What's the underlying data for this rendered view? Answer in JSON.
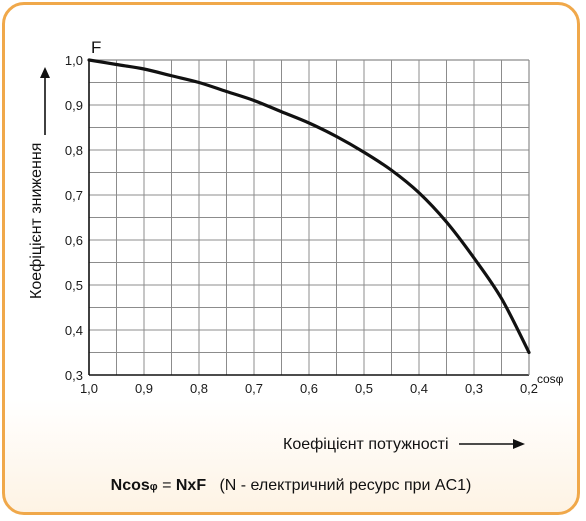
{
  "chart_data": {
    "type": "line",
    "title": "",
    "ylabel": "Коефіцієнт зниження",
    "xlabel": "Коефіцієнт потужності",
    "y_axis_symbol": "F",
    "x_axis_symbol": "cosφ",
    "x_ticks": [
      "1,0",
      "0,9",
      "0,8",
      "0,7",
      "0,6",
      "0,5",
      "0,4",
      "0,3",
      "0,2"
    ],
    "y_ticks": [
      "0,3",
      "0,4",
      "0,5",
      "0,6",
      "0,7",
      "0,8",
      "0,9",
      "1,0"
    ],
    "xlim": [
      1.0,
      0.2
    ],
    "ylim": [
      0.3,
      1.0
    ],
    "x_reversed": true,
    "grid": true,
    "series": [
      {
        "x": [
          1.0,
          0.95,
          0.9,
          0.85,
          0.8,
          0.75,
          0.7,
          0.65,
          0.6,
          0.55,
          0.5,
          0.45,
          0.4,
          0.35,
          0.3,
          0.25,
          0.2
        ],
        "y": [
          1.0,
          0.99,
          0.98,
          0.965,
          0.95,
          0.93,
          0.91,
          0.885,
          0.86,
          0.83,
          0.795,
          0.755,
          0.705,
          0.64,
          0.56,
          0.47,
          0.35
        ]
      }
    ]
  },
  "formula": {
    "lhs": "Ncos",
    "lhs_sub": "φ",
    "eq": " = ",
    "rhs": "NxF",
    "note": "(N - електричний ресурс при AC1)"
  },
  "colors": {
    "border": "#f0a84a",
    "grid": "#8c8c8c",
    "curve": "#111111"
  }
}
